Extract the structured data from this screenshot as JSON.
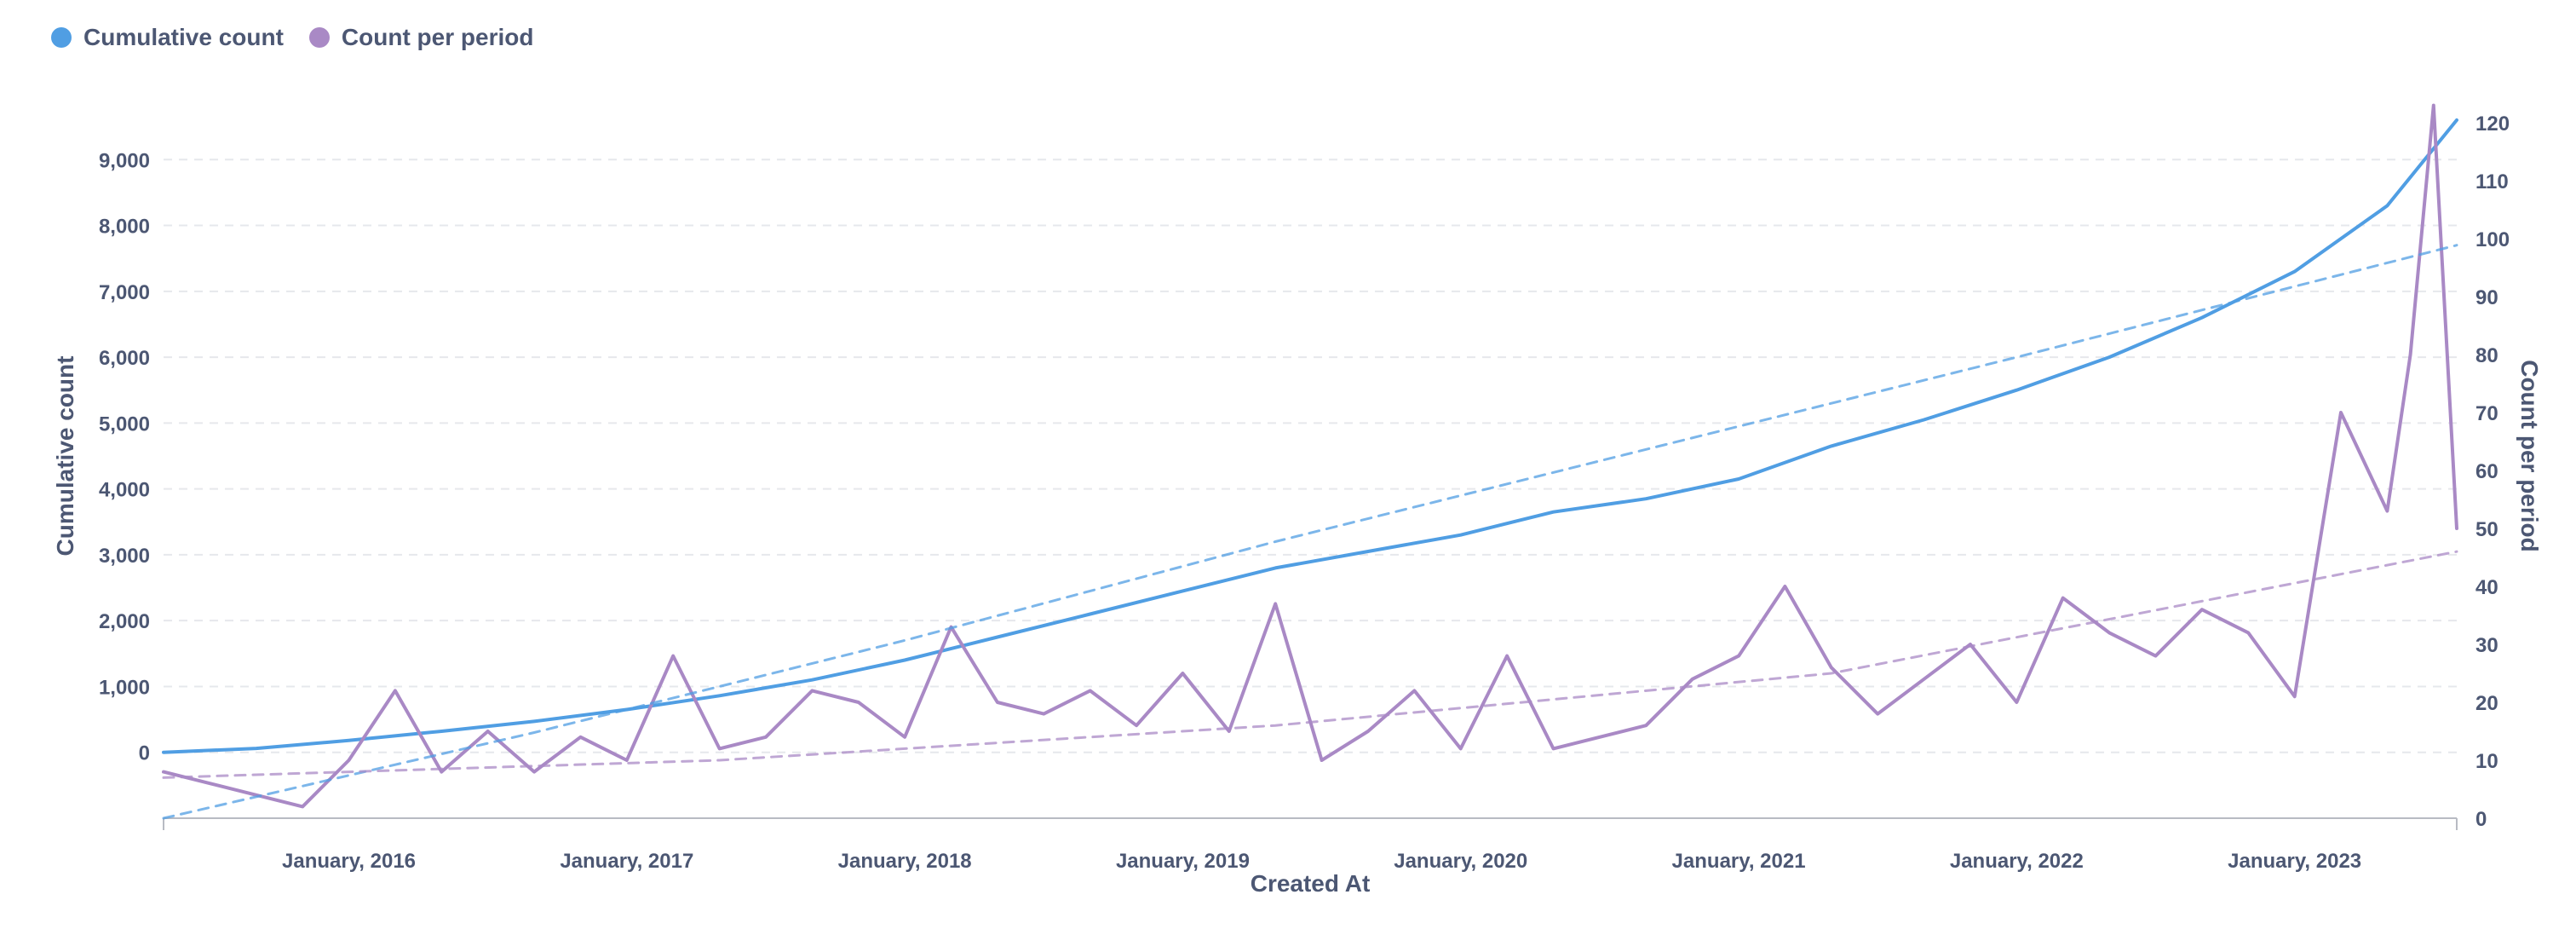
{
  "legend": {
    "items": [
      {
        "label": "Cumulative count",
        "color": "#509ee3"
      },
      {
        "label": "Count per period",
        "color": "#a989c5"
      }
    ]
  },
  "chart_data": {
    "type": "line",
    "xlabel": "Created At",
    "ylabel_left": "Cumulative count",
    "ylabel_right": "Count per period",
    "x_range": [
      "2015-05",
      "2023-08"
    ],
    "x_tick_labels": [
      "January, 2016",
      "January, 2017",
      "January, 2018",
      "January, 2019",
      "January, 2020",
      "January, 2021",
      "January, 2022",
      "January, 2023"
    ],
    "y_left_range": [
      -1000,
      10000
    ],
    "y_left_ticks": [
      "0",
      "1,000",
      "2,000",
      "3,000",
      "4,000",
      "5,000",
      "6,000",
      "7,000",
      "8,000",
      "9,000"
    ],
    "y_right_range": [
      0,
      125
    ],
    "y_right_ticks": [
      "0",
      "10",
      "20",
      "30",
      "40",
      "50",
      "60",
      "70",
      "80",
      "90",
      "100",
      "110",
      "120"
    ],
    "grid": "horizontal",
    "series": [
      {
        "name": "Cumulative count",
        "axis": "left",
        "color": "#509ee3",
        "points": [
          [
            "2015-05",
            0
          ],
          [
            "2015-09",
            60
          ],
          [
            "2016-01",
            180
          ],
          [
            "2016-05",
            320
          ],
          [
            "2016-09",
            470
          ],
          [
            "2017-01",
            650
          ],
          [
            "2017-05",
            860
          ],
          [
            "2017-09",
            1100
          ],
          [
            "2018-01",
            1400
          ],
          [
            "2018-05",
            1750
          ],
          [
            "2018-09",
            2100
          ],
          [
            "2019-01",
            2450
          ],
          [
            "2019-05",
            2800
          ],
          [
            "2019-09",
            3050
          ],
          [
            "2020-01",
            3300
          ],
          [
            "2020-05",
            3650
          ],
          [
            "2020-09",
            3850
          ],
          [
            "2021-01",
            4150
          ],
          [
            "2021-05",
            4650
          ],
          [
            "2021-09",
            5050
          ],
          [
            "2022-01",
            5500
          ],
          [
            "2022-05",
            6000
          ],
          [
            "2022-09",
            6600
          ],
          [
            "2023-01",
            7300
          ],
          [
            "2023-05",
            8300
          ],
          [
            "2023-08",
            9600
          ]
        ]
      },
      {
        "name": "Count per period",
        "axis": "right",
        "color": "#a989c5",
        "points": [
          [
            "2015-05",
            8
          ],
          [
            "2015-07",
            6
          ],
          [
            "2015-09",
            4
          ],
          [
            "2015-11",
            2
          ],
          [
            "2016-01",
            10
          ],
          [
            "2016-03",
            22
          ],
          [
            "2016-05",
            8
          ],
          [
            "2016-07",
            15
          ],
          [
            "2016-09",
            8
          ],
          [
            "2016-11",
            14
          ],
          [
            "2017-01",
            10
          ],
          [
            "2017-03",
            28
          ],
          [
            "2017-05",
            12
          ],
          [
            "2017-07",
            14
          ],
          [
            "2017-09",
            22
          ],
          [
            "2017-11",
            20
          ],
          [
            "2018-01",
            14
          ],
          [
            "2018-03",
            33
          ],
          [
            "2018-05",
            20
          ],
          [
            "2018-07",
            18
          ],
          [
            "2018-09",
            22
          ],
          [
            "2018-11",
            16
          ],
          [
            "2019-01",
            25
          ],
          [
            "2019-03",
            15
          ],
          [
            "2019-05",
            37
          ],
          [
            "2019-07",
            10
          ],
          [
            "2019-09",
            15
          ],
          [
            "2019-11",
            22
          ],
          [
            "2020-01",
            12
          ],
          [
            "2020-03",
            28
          ],
          [
            "2020-05",
            12
          ],
          [
            "2020-07",
            14
          ],
          [
            "2020-09",
            16
          ],
          [
            "2020-11",
            24
          ],
          [
            "2021-01",
            28
          ],
          [
            "2021-03",
            40
          ],
          [
            "2021-05",
            26
          ],
          [
            "2021-07",
            18
          ],
          [
            "2021-09",
            24
          ],
          [
            "2021-11",
            30
          ],
          [
            "2022-01",
            20
          ],
          [
            "2022-03",
            38
          ],
          [
            "2022-05",
            32
          ],
          [
            "2022-07",
            28
          ],
          [
            "2022-09",
            36
          ],
          [
            "2022-11",
            32
          ],
          [
            "2023-01",
            21
          ],
          [
            "2023-03",
            70
          ],
          [
            "2023-05",
            53
          ],
          [
            "2023-06",
            80
          ],
          [
            "2023-07",
            123
          ],
          [
            "2023-08",
            50
          ]
        ]
      },
      {
        "name": "Cumulative count trend",
        "axis": "left",
        "color": "#509ee3",
        "dashed": true,
        "points": [
          [
            "2015-05",
            -1000
          ],
          [
            "2016-09",
            300
          ],
          [
            "2018-01",
            1700
          ],
          [
            "2019-05",
            3200
          ],
          [
            "2020-09",
            4600
          ],
          [
            "2022-01",
            6000
          ],
          [
            "2023-08",
            7700
          ]
        ]
      },
      {
        "name": "Count per period trend",
        "axis": "right",
        "color": "#a989c5",
        "dashed": true,
        "points": [
          [
            "2015-05",
            7
          ],
          [
            "2017-05",
            10
          ],
          [
            "2019-05",
            16
          ],
          [
            "2021-05",
            25
          ],
          [
            "2023-08",
            46
          ]
        ]
      }
    ]
  }
}
